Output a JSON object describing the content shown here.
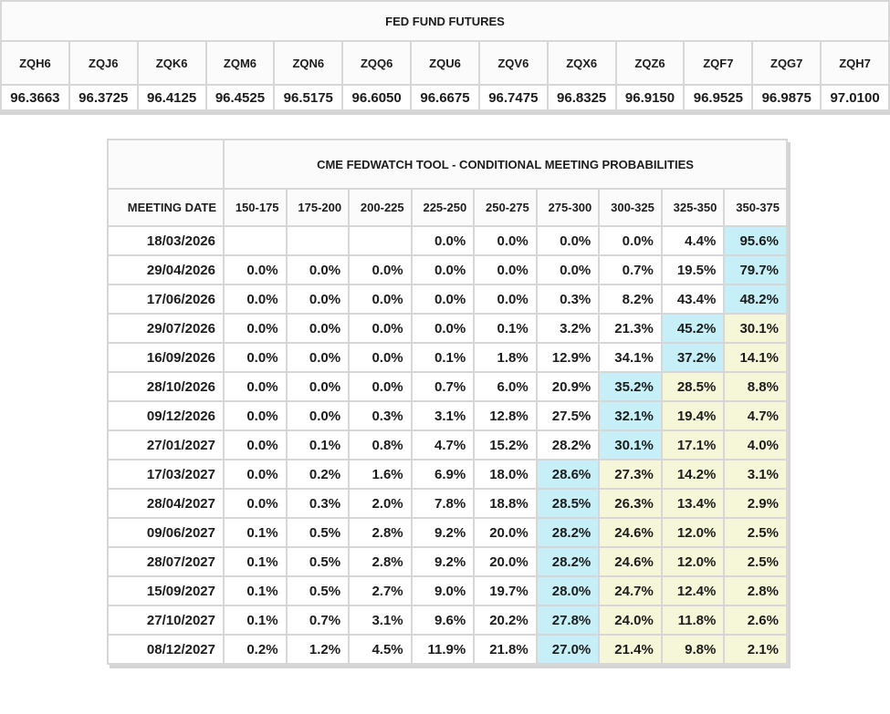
{
  "colors": {
    "highlight_max": "#c6eff7",
    "highlight_right_of_max": "#f6f6d9",
    "grid_border": "#d7d7d7",
    "header_bg": "#fbfbfb",
    "text": "#1c1c1c",
    "shadow": "#d5d5d5"
  },
  "chart_data": [
    {
      "type": "table",
      "title": "FED FUND FUTURES",
      "columns": [
        "ZQH6",
        "ZQJ6",
        "ZQK6",
        "ZQM6",
        "ZQN6",
        "ZQQ6",
        "ZQU6",
        "ZQV6",
        "ZQX6",
        "ZQZ6",
        "ZQF7",
        "ZQG7",
        "ZQH7"
      ],
      "values": [
        "96.3663",
        "96.3725",
        "96.4125",
        "96.4525",
        "96.5175",
        "96.6050",
        "96.6675",
        "96.7475",
        "96.8325",
        "96.9150",
        "96.9525",
        "96.9875",
        "97.0100"
      ]
    },
    {
      "type": "table",
      "title": "CME FEDWATCH TOOL - CONDITIONAL MEETING PROBABILITIES",
      "row_header": "MEETING DATE",
      "columns": [
        "150-175",
        "175-200",
        "200-225",
        "225-250",
        "250-275",
        "275-300",
        "300-325",
        "325-350",
        "350-375"
      ],
      "highlight_legend": {
        "max_cell_color": "#c6eff7",
        "right_of_max_color": "#f6f6d9"
      },
      "rows": [
        {
          "date": "18/03/2026",
          "values": [
            "",
            "",
            "",
            "0.0%",
            "0.0%",
            "0.0%",
            "0.0%",
            "4.4%",
            "95.6%"
          ],
          "max_index": 8
        },
        {
          "date": "29/04/2026",
          "values": [
            "0.0%",
            "0.0%",
            "0.0%",
            "0.0%",
            "0.0%",
            "0.0%",
            "0.7%",
            "19.5%",
            "79.7%"
          ],
          "max_index": 8
        },
        {
          "date": "17/06/2026",
          "values": [
            "0.0%",
            "0.0%",
            "0.0%",
            "0.0%",
            "0.0%",
            "0.3%",
            "8.2%",
            "43.4%",
            "48.2%"
          ],
          "max_index": 8
        },
        {
          "date": "29/07/2026",
          "values": [
            "0.0%",
            "0.0%",
            "0.0%",
            "0.0%",
            "0.1%",
            "3.2%",
            "21.3%",
            "45.2%",
            "30.1%"
          ],
          "max_index": 7
        },
        {
          "date": "16/09/2026",
          "values": [
            "0.0%",
            "0.0%",
            "0.0%",
            "0.1%",
            "1.8%",
            "12.9%",
            "34.1%",
            "37.2%",
            "14.1%"
          ],
          "max_index": 7
        },
        {
          "date": "28/10/2026",
          "values": [
            "0.0%",
            "0.0%",
            "0.0%",
            "0.7%",
            "6.0%",
            "20.9%",
            "35.2%",
            "28.5%",
            "8.8%"
          ],
          "max_index": 6
        },
        {
          "date": "09/12/2026",
          "values": [
            "0.0%",
            "0.0%",
            "0.3%",
            "3.1%",
            "12.8%",
            "27.5%",
            "32.1%",
            "19.4%",
            "4.7%"
          ],
          "max_index": 6
        },
        {
          "date": "27/01/2027",
          "values": [
            "0.0%",
            "0.1%",
            "0.8%",
            "4.7%",
            "15.2%",
            "28.2%",
            "30.1%",
            "17.1%",
            "4.0%"
          ],
          "max_index": 6
        },
        {
          "date": "17/03/2027",
          "values": [
            "0.0%",
            "0.2%",
            "1.6%",
            "6.9%",
            "18.0%",
            "28.6%",
            "27.3%",
            "14.2%",
            "3.1%"
          ],
          "max_index": 5
        },
        {
          "date": "28/04/2027",
          "values": [
            "0.0%",
            "0.3%",
            "2.0%",
            "7.8%",
            "18.8%",
            "28.5%",
            "26.3%",
            "13.4%",
            "2.9%"
          ],
          "max_index": 5
        },
        {
          "date": "09/06/2027",
          "values": [
            "0.1%",
            "0.5%",
            "2.8%",
            "9.2%",
            "20.0%",
            "28.2%",
            "24.6%",
            "12.0%",
            "2.5%"
          ],
          "max_index": 5
        },
        {
          "date": "28/07/2027",
          "values": [
            "0.1%",
            "0.5%",
            "2.8%",
            "9.2%",
            "20.0%",
            "28.2%",
            "24.6%",
            "12.0%",
            "2.5%"
          ],
          "max_index": 5
        },
        {
          "date": "15/09/2027",
          "values": [
            "0.1%",
            "0.5%",
            "2.7%",
            "9.0%",
            "19.7%",
            "28.0%",
            "24.7%",
            "12.4%",
            "2.8%"
          ],
          "max_index": 5
        },
        {
          "date": "27/10/2027",
          "values": [
            "0.1%",
            "0.7%",
            "3.1%",
            "9.6%",
            "20.2%",
            "27.8%",
            "24.0%",
            "11.8%",
            "2.6%"
          ],
          "max_index": 5
        },
        {
          "date": "08/12/2027",
          "values": [
            "0.2%",
            "1.2%",
            "4.5%",
            "11.9%",
            "21.8%",
            "27.0%",
            "21.4%",
            "9.8%",
            "2.1%"
          ],
          "max_index": 5
        }
      ]
    }
  ]
}
